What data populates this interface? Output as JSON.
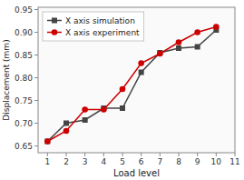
{
  "chart_data": {
    "type": "line",
    "x": [
      1,
      2,
      3,
      4,
      5,
      6,
      7,
      8,
      9,
      10
    ],
    "series": [
      {
        "name": "X axis simulation",
        "color": "#444444",
        "marker": "square",
        "values": [
          0.66,
          0.7,
          0.707,
          0.733,
          0.733,
          0.812,
          0.855,
          0.865,
          0.868,
          0.905
        ]
      },
      {
        "name": "X axis experiment",
        "color": "#cc0000",
        "marker": "circle",
        "values": [
          0.66,
          0.683,
          0.73,
          0.73,
          0.775,
          0.832,
          0.853,
          0.878,
          0.9,
          0.912
        ]
      }
    ],
    "xlabel": "Load level",
    "ylabel": "Displacement (mm)",
    "xlim": [
      0.5,
      11
    ],
    "ylim": [
      0.635,
      0.955
    ],
    "xticks": [
      1,
      2,
      3,
      4,
      5,
      6,
      7,
      8,
      9,
      10,
      11
    ],
    "yticks": [
      0.65,
      {
        "value": 0.7,
        "label": "0.70"
      },
      0.75,
      {
        "value": 0.8,
        "label": "0.80"
      },
      0.85,
      {
        "value": 0.9,
        "label": "0.90"
      },
      0.95
    ],
    "legend": "upper-left",
    "grid": false
  }
}
